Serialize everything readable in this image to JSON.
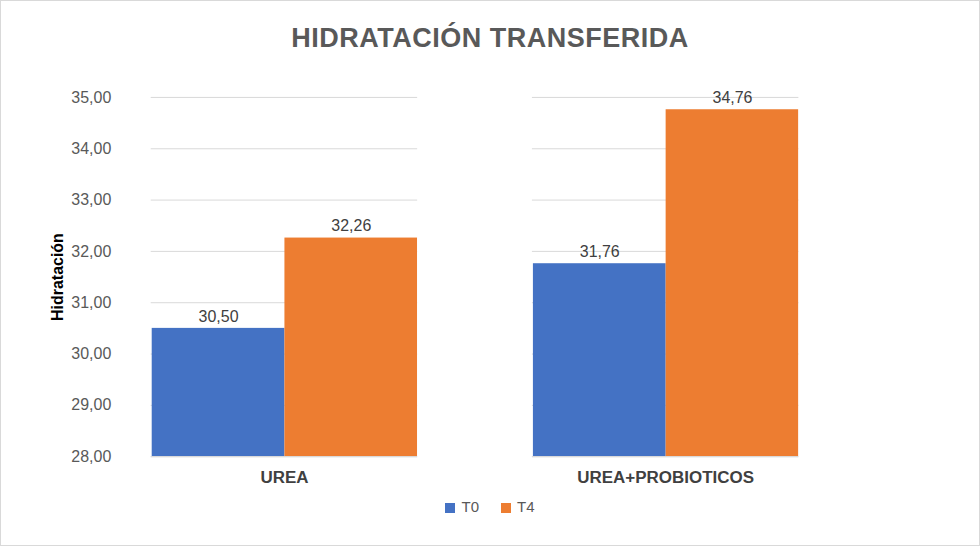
{
  "chart_data": {
    "type": "bar",
    "title": "HIDRATACIÓN TRANSFERIDA",
    "y_label": "Hidratación",
    "categories": [
      "UREA",
      "UREA+PROBIOTICOS"
    ],
    "series": [
      {
        "name": "T0",
        "color": "#4472c4",
        "values": [
          30.5,
          31.76
        ],
        "value_labels": [
          "30,50",
          "31,76"
        ]
      },
      {
        "name": "T4",
        "color": "#ed7d31",
        "values": [
          32.26,
          34.76
        ],
        "value_labels": [
          "32,26",
          "34,76"
        ]
      }
    ],
    "ylim": [
      28,
      35
    ],
    "yticks": [
      {
        "value": 28,
        "label": "28,00"
      },
      {
        "value": 29,
        "label": "29,00"
      },
      {
        "value": 30,
        "label": "30,00"
      },
      {
        "value": 31,
        "label": "31,00"
      },
      {
        "value": 32,
        "label": "32,00"
      },
      {
        "value": 33,
        "label": "33,00"
      },
      {
        "value": 34,
        "label": "34,00"
      },
      {
        "value": 35,
        "label": "35,00"
      }
    ],
    "grid": true,
    "data_labels": true,
    "legend": "bottom"
  }
}
